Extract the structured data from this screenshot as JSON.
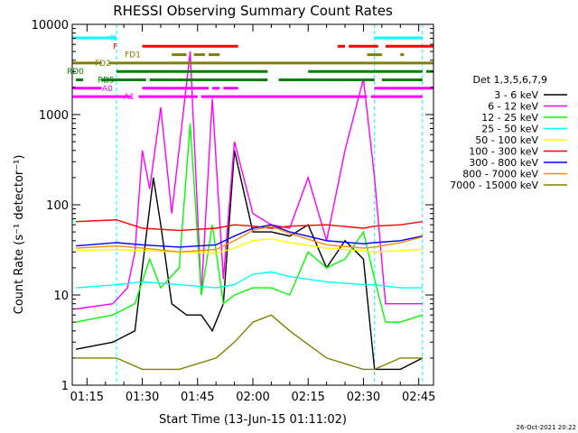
{
  "chart_data": {
    "type": "line",
    "title": "RHESSI Observing Summary Count Rates",
    "xlabel": "Start Time (13-Jun-15 01:11:02)",
    "ylabel": "Count Rate (s⁻¹ detector⁻¹)",
    "yscale": "log",
    "ylim": [
      1,
      10000
    ],
    "xlim_minutes": [
      71,
      169
    ],
    "x_ticks": [
      {
        "t": 75,
        "label": "01:15"
      },
      {
        "t": 90,
        "label": "01:30"
      },
      {
        "t": 105,
        "label": "01:45"
      },
      {
        "t": 120,
        "label": "02:00"
      },
      {
        "t": 135,
        "label": "02:15"
      },
      {
        "t": 150,
        "label": "02:30"
      },
      {
        "t": 165,
        "label": "02:45"
      }
    ],
    "y_ticks": [
      {
        "v": 1,
        "label": "1"
      },
      {
        "v": 10,
        "label": "10"
      },
      {
        "v": 100,
        "label": "100"
      },
      {
        "v": 1000,
        "label": "1000"
      },
      {
        "v": 10000,
        "label": "10000"
      }
    ],
    "night_boundaries_minutes": [
      83,
      153,
      166
    ],
    "legend_title": "Det 1,3,5,6,7,9",
    "series": [
      {
        "name": "3 - 6 keV",
        "color": "#000000",
        "x": [
          72,
          82,
          88,
          90,
          93,
          95,
          98,
          102,
          106,
          109,
          112,
          115,
          120,
          125,
          130,
          135,
          140,
          145,
          150,
          153,
          156,
          160,
          166
        ],
        "values": [
          2.5,
          3,
          4,
          20,
          200,
          60,
          8,
          6,
          6,
          4,
          8,
          400,
          50,
          50,
          45,
          60,
          20,
          40,
          25,
          1.5,
          1.5,
          1.5,
          2
        ]
      },
      {
        "name": "6 - 12 keV",
        "color": "#ff00ff",
        "x": [
          72,
          82,
          86,
          88,
          90,
          92,
          95,
          98,
          103,
          106,
          109,
          112,
          115,
          120,
          125,
          130,
          135,
          140,
          145,
          150,
          153,
          156,
          160,
          166
        ],
        "values": [
          7,
          8,
          12,
          30,
          400,
          150,
          1200,
          80,
          5000,
          10,
          1500,
          15,
          500,
          80,
          60,
          55,
          200,
          40,
          400,
          2500,
          200,
          8,
          8,
          8
        ]
      },
      {
        "name": "12 - 25 keV",
        "color": "#00ff00",
        "x": [
          72,
          82,
          88,
          92,
          95,
          100,
          103,
          106,
          109,
          112,
          115,
          120,
          125,
          130,
          135,
          140,
          145,
          150,
          153,
          156,
          160,
          166
        ],
        "values": [
          5,
          6,
          8,
          25,
          12,
          20,
          800,
          10,
          60,
          8,
          10,
          12,
          12,
          10,
          30,
          20,
          25,
          50,
          15,
          5,
          5,
          6
        ]
      },
      {
        "name": "25 - 50 keV",
        "color": "#00ffff",
        "x": [
          72,
          83,
          90,
          100,
          110,
          115,
          120,
          125,
          130,
          140,
          150,
          153,
          160,
          166
        ],
        "values": [
          12,
          13,
          14,
          13,
          12,
          13,
          17,
          18,
          16,
          14,
          13,
          13,
          12,
          12
        ]
      },
      {
        "name": "50 - 100 keV",
        "color": "#ffff00",
        "x": [
          72,
          83,
          90,
          100,
          110,
          115,
          120,
          125,
          130,
          140,
          150,
          153,
          160,
          166
        ],
        "values": [
          31,
          32,
          31,
          30,
          29,
          33,
          40,
          42,
          38,
          33,
          31,
          30,
          31,
          32
        ]
      },
      {
        "name": "100 - 300 keV",
        "color": "#ff0000",
        "x": [
          72,
          83,
          90,
          100,
          110,
          115,
          120,
          125,
          130,
          140,
          150,
          153,
          160,
          166
        ],
        "values": [
          65,
          68,
          55,
          52,
          55,
          60,
          58,
          55,
          58,
          60,
          55,
          58,
          60,
          65
        ]
      },
      {
        "name": "300 - 800 keV",
        "color": "#0000ff",
        "x": [
          72,
          83,
          90,
          100,
          110,
          115,
          120,
          125,
          130,
          140,
          150,
          153,
          160,
          166
        ],
        "values": [
          35,
          38,
          36,
          34,
          36,
          45,
          55,
          60,
          50,
          40,
          37,
          38,
          40,
          45
        ]
      },
      {
        "name": "800 - 7000 keV",
        "color": "#ff8c00",
        "x": [
          72,
          83,
          90,
          100,
          110,
          115,
          120,
          125,
          130,
          140,
          150,
          153,
          160,
          166
        ],
        "values": [
          33,
          35,
          33,
          30,
          32,
          40,
          52,
          58,
          48,
          36,
          33,
          34,
          38,
          44
        ]
      },
      {
        "name": "7000 - 15000 keV",
        "color": "#808000",
        "x": [
          72,
          83,
          90,
          100,
          110,
          115,
          120,
          125,
          130,
          140,
          150,
          153,
          160,
          166
        ],
        "values": [
          2,
          2,
          1.5,
          1.5,
          2,
          3,
          5,
          6,
          4,
          2,
          1.5,
          1.5,
          2,
          2
        ]
      }
    ],
    "flag_bars": [
      {
        "label": "N",
        "color": "#00ffff",
        "segments": [
          [
            71,
            83
          ],
          [
            153,
            166
          ]
        ]
      },
      {
        "label": "F",
        "color": "#ff0000",
        "segments": [
          [
            90,
            116
          ],
          [
            143,
            145
          ],
          [
            146,
            154
          ],
          [
            156,
            169
          ]
        ]
      },
      {
        "label": "FD1",
        "color": "#808000",
        "segments": [
          [
            98,
            102
          ],
          [
            104,
            107
          ],
          [
            108,
            111
          ],
          [
            151,
            155
          ],
          [
            160,
            161
          ]
        ]
      },
      {
        "label": "FD2",
        "color": "#808000",
        "segments": [
          [
            71,
            79
          ],
          [
            81,
            103
          ],
          [
            103,
            169
          ]
        ]
      },
      {
        "label": "RD0",
        "color": "#008000",
        "segments": [
          [
            83,
            124
          ],
          [
            135,
            166
          ],
          [
            167,
            169
          ]
        ]
      },
      {
        "label": "RD5",
        "color": "#008000",
        "segments": [
          [
            72,
            74
          ],
          [
            79,
            91
          ],
          [
            92,
            124
          ],
          [
            127,
            153
          ],
          [
            155,
            166
          ]
        ]
      },
      {
        "label": "A0",
        "color": "#ff00ff",
        "segments": [
          [
            71,
            79
          ],
          [
            90,
            108
          ],
          [
            109,
            111
          ],
          [
            112,
            116
          ],
          [
            153,
            169
          ]
        ]
      },
      {
        "label": "A1",
        "color": "#ff00ff",
        "segments": [
          [
            71,
            87
          ],
          [
            89,
            105
          ],
          [
            106,
            151
          ],
          [
            152,
            166
          ]
        ]
      }
    ]
  },
  "footer_date": "26-Oct-2021 20:22"
}
